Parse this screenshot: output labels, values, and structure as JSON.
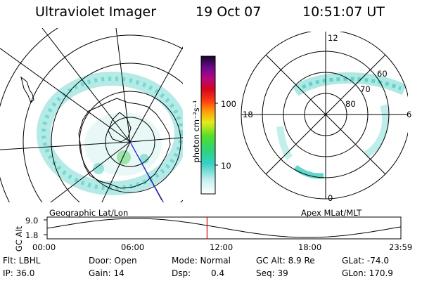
{
  "header": {
    "instrument": "Ultraviolet Imager",
    "date": "19 Oct 07",
    "time": "10:51:07 UT"
  },
  "colorbar": {
    "label": "photon cm⁻²s⁻¹",
    "ticks": [
      "100",
      "10"
    ]
  },
  "maps": {
    "left_label": "Geographic Lat/Lon",
    "right_label": "Apex MLat/MLT",
    "polar_hours": [
      "12",
      "18",
      "6",
      "0"
    ],
    "polar_lats": [
      "60",
      "70",
      "80"
    ]
  },
  "timeline": {
    "axis_title": "GC Alt",
    "yticks": [
      "9.0",
      "1.8"
    ],
    "xticks": [
      "00:00",
      "06:00",
      "12:00",
      "18:00",
      "23:59"
    ],
    "current_marker_hour": 10.85,
    "marker_color": "#e00000"
  },
  "footer": {
    "filter": "Flt: LBHL",
    "ip": "IP: 36.0",
    "door": "Door: Open",
    "gain": "Gain: 14",
    "mode": "Mode: Normal",
    "dsp_label": "Dsp:",
    "dsp_value": "0.4",
    "gc_alt": "GC Alt: 8.9 Re",
    "seq": "Seq: 39",
    "glat": "GLat: -74.0",
    "glon": "GLon: 170.9"
  }
}
